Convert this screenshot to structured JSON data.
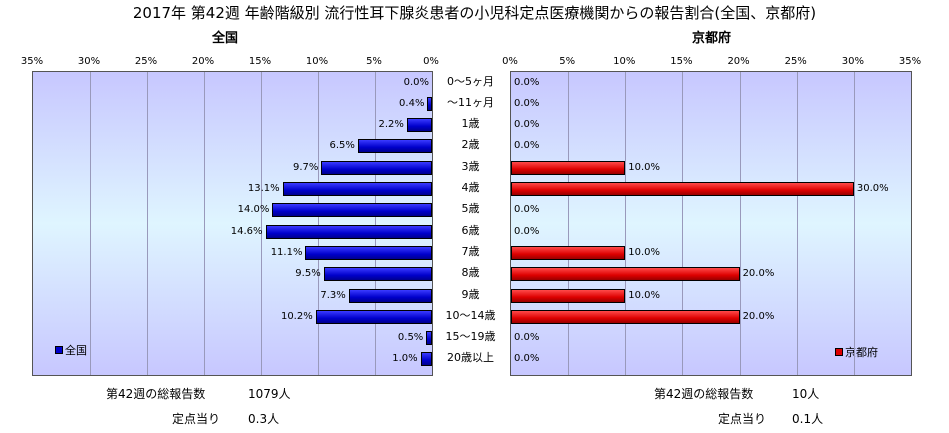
{
  "title": "2017年 第42週 年齢階級別 流行性耳下腺炎患者の小児科定点医療機関からの報告割合(全国、京都府)",
  "chart_data": {
    "type": "bar",
    "orientation": "horizontal-butterfly",
    "categories": [
      "0～5ヶ月",
      "～11ヶ月",
      "1歳",
      "2歳",
      "3歳",
      "4歳",
      "5歳",
      "6歳",
      "7歳",
      "8歳",
      "9歳",
      "10～14歳",
      "15～19歳",
      "20歳以上"
    ],
    "series": [
      {
        "name": "全国",
        "color": "#0000cc",
        "values": [
          0.0,
          0.4,
          2.2,
          6.5,
          9.7,
          13.1,
          14.0,
          14.6,
          11.1,
          9.5,
          7.3,
          10.2,
          0.5,
          1.0
        ],
        "labels": [
          "0.0%",
          "0.4%",
          "2.2%",
          "6.5%",
          "9.7%",
          "13.1%",
          "14.0%",
          "14.6%",
          "11.1%",
          "9.5%",
          "7.3%",
          "10.2%",
          "0.5%",
          "1.0%"
        ]
      },
      {
        "name": "京都府",
        "color": "#dd0000",
        "values": [
          0,
          0,
          0,
          0,
          10,
          30,
          0,
          0,
          10,
          20,
          10,
          20,
          0,
          0
        ],
        "labels": [
          "0.0%",
          "0.0%",
          "0.0%",
          "0.0%",
          "10.0%",
          "30.0%",
          "0.0%",
          "0.0%",
          "10.0%",
          "20.0%",
          "10.0%",
          "20.0%",
          "0.0%",
          "0.0%"
        ]
      }
    ],
    "xlim": [
      0,
      35
    ],
    "ticks": [
      "0%",
      "5%",
      "10%",
      "15%",
      "20%",
      "25%",
      "30%",
      "35%"
    ],
    "left_ticks": [
      "35%",
      "30%",
      "25%",
      "20%",
      "15%",
      "10%",
      "5%",
      "0%"
    ],
    "panel_titles": {
      "left": "全国",
      "right": "京都府"
    },
    "legend": {
      "left": "全国",
      "right": "京都府",
      "left_position": "bottom-left",
      "right_position": "bottom-right"
    },
    "grid": true
  },
  "footer": {
    "left_total_label": "第42週の総報告数",
    "left_total_value": "1079人",
    "left_per_label": "定点当り",
    "left_per_value": "0.3人",
    "right_total_label": "第42週の総報告数",
    "right_total_value": "10人",
    "right_per_label": "定点当り",
    "right_per_value": "0.1人"
  }
}
